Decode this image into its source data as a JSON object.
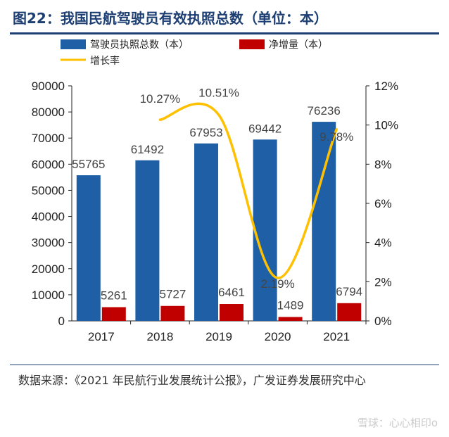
{
  "title": "图22：我国民航驾驶员有效执照总数（单位：本）",
  "source": "数据来源：《2021 年民航行业发展统计公报》，广发证券发展研究中心",
  "watermark": "雪球：心心相印o",
  "chart_data": {
    "type": "bar+line",
    "categories": [
      "2017",
      "2018",
      "2019",
      "2020",
      "2021"
    ],
    "series": [
      {
        "name": "驾驶员执照总数（本）",
        "type": "bar",
        "axis": "left",
        "color": "#1f5fa6",
        "values": [
          55765,
          61492,
          67953,
          69442,
          76236
        ],
        "labels": [
          "55765",
          "61492",
          "67953",
          "69442",
          "76236"
        ]
      },
      {
        "name": "净增量（本）",
        "type": "bar",
        "axis": "left",
        "color": "#c00000",
        "values": [
          5261,
          5727,
          6461,
          1489,
          6794
        ],
        "labels": [
          "5261",
          "5727",
          "6461",
          "1489",
          "6794"
        ]
      },
      {
        "name": "增长率",
        "type": "line",
        "axis": "right",
        "color": "#ffc000",
        "x": [
          "2018",
          "2019",
          "2020",
          "2021"
        ],
        "values": [
          10.27,
          10.51,
          2.19,
          9.78
        ],
        "labels": [
          "10.27%",
          "10.51%",
          "2.19%",
          "9.78%"
        ]
      }
    ],
    "y_left": {
      "min": 0,
      "max": 90000,
      "ticks": [
        "0",
        "10000",
        "20000",
        "30000",
        "40000",
        "50000",
        "60000",
        "70000",
        "80000",
        "90000"
      ]
    },
    "y_right": {
      "min": 0,
      "max": 12,
      "ticks": [
        "0%",
        "2%",
        "4%",
        "6%",
        "8%",
        "10%",
        "12%"
      ]
    },
    "legend": "top",
    "grid": false
  }
}
